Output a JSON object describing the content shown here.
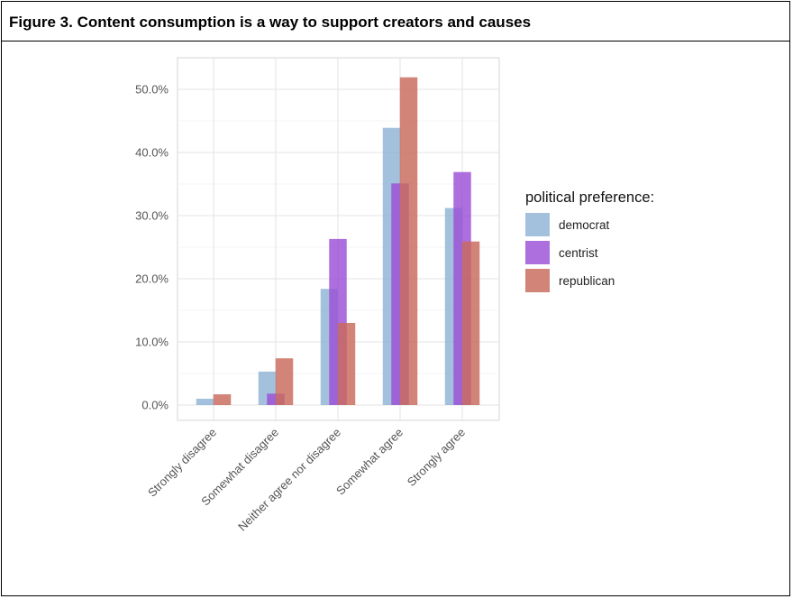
{
  "figure": {
    "title": "Figure 3. Content consumption is a way to support creators and causes"
  },
  "chart_data": {
    "type": "bar",
    "categories": [
      "Strongly disagree",
      "Somewhat disagree",
      "Neither agree nor disagree",
      "Somewhat agree",
      "Strongly agree"
    ],
    "series": [
      {
        "name": "democrat",
        "color": "#8fb3d4",
        "values": [
          1.0,
          5.3,
          18.4,
          43.9,
          31.2
        ]
      },
      {
        "name": "centrist",
        "color": "#9b4fd6",
        "values": [
          0.0,
          1.8,
          26.3,
          35.1,
          36.9
        ]
      },
      {
        "name": "republican",
        "color": "#c8695c",
        "values": [
          1.7,
          7.4,
          13.0,
          51.9,
          25.9
        ]
      }
    ],
    "ylim": [
      0,
      53.5
    ],
    "yticks": [
      0,
      10,
      20,
      30,
      40,
      50
    ],
    "ytick_labels": [
      "0.0%",
      "10.0%",
      "20.0%",
      "30.0%",
      "40.0%",
      "50.0%"
    ],
    "xlabel": "",
    "ylabel": "",
    "grid": true,
    "legend": {
      "title": "political preference:",
      "position": "right"
    }
  }
}
